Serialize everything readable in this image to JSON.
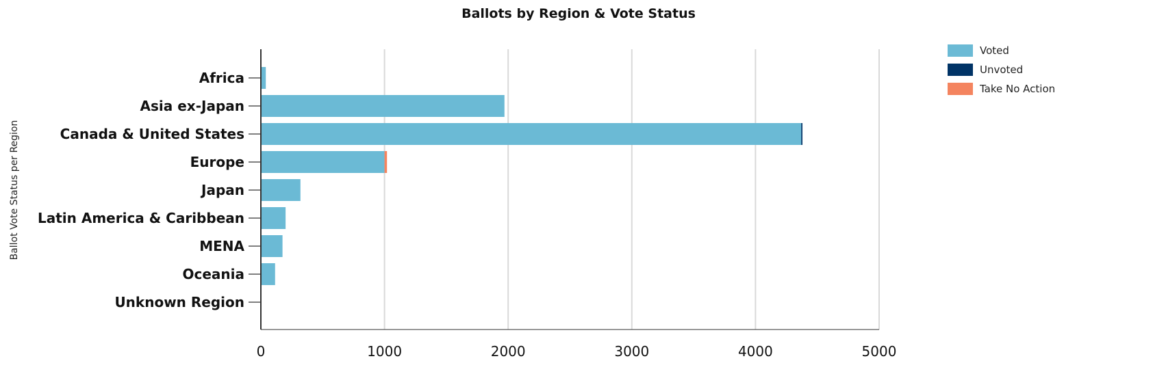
{
  "chart_data": {
    "type": "bar",
    "orientation": "horizontal",
    "stacked": true,
    "title": "Ballots by Region & Vote Status",
    "xlabel": "",
    "ylabel": "Ballot Vote Status per Region",
    "xlim": [
      0,
      5000
    ],
    "xticks": [
      0,
      1000,
      2000,
      3000,
      4000,
      5000
    ],
    "grid": "vertical",
    "legend_position": "top-right",
    "categories": [
      "Africa",
      "Asia ex-Japan",
      "Canada & United States",
      "Europe",
      "Japan",
      "Latin America & Caribbean",
      "MENA",
      "Oceania",
      "Unknown Region"
    ],
    "series": [
      {
        "name": "Voted",
        "color": "#6bbad5",
        "values": [
          40,
          1970,
          4370,
          1000,
          320,
          200,
          175,
          115,
          0
        ]
      },
      {
        "name": "Unvoted",
        "color": "#003366",
        "values": [
          0,
          0,
          10,
          0,
          0,
          0,
          0,
          0,
          0
        ]
      },
      {
        "name": "Take No Action",
        "color": "#f4845f",
        "values": [
          0,
          0,
          0,
          20,
          0,
          0,
          0,
          0,
          0
        ]
      }
    ]
  }
}
